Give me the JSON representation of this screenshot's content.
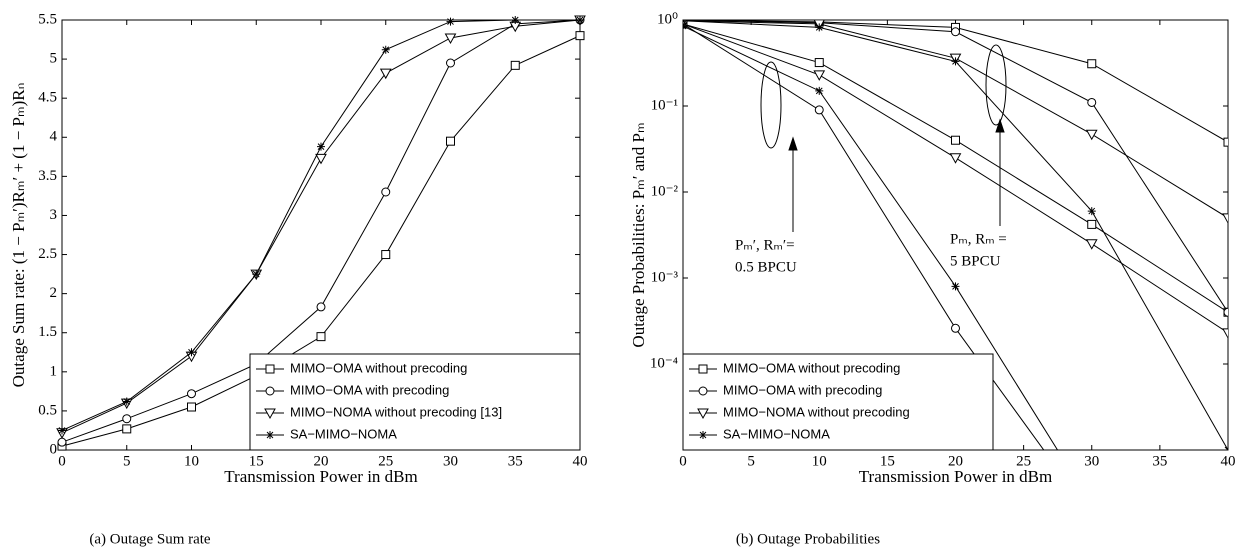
{
  "chart_data": [
    {
      "type": "line",
      "caption": "(a) Outage Sum rate",
      "xlabel": "Transmission Power in dBm",
      "ylabel": "Outage Sum rate: (1 − Pₘ′)Rₘ′ + (1 − Pₘ)Rₙ",
      "x": [
        0,
        5,
        10,
        15,
        20,
        25,
        30,
        35,
        40
      ],
      "xlim": [
        0,
        40
      ],
      "xticks": [
        0,
        5,
        10,
        15,
        20,
        25,
        30,
        35,
        40
      ],
      "ylim": [
        0,
        5.5
      ],
      "yticks": [
        0,
        0.5,
        1,
        1.5,
        2,
        2.5,
        3,
        3.5,
        4,
        4.5,
        5,
        5.5
      ],
      "legend": "lower right",
      "series": [
        {
          "name": "MIMO−OMA without precoding",
          "marker": "square",
          "color": "#000000",
          "values": [
            0.05,
            0.27,
            0.55,
            0.95,
            1.45,
            2.5,
            3.95,
            4.92,
            5.3
          ]
        },
        {
          "name": "MIMO−OMA with precoding",
          "marker": "circle",
          "color": "#000000",
          "values": [
            0.1,
            0.4,
            0.72,
            1.1,
            1.83,
            3.3,
            4.95,
            5.45,
            5.5
          ]
        },
        {
          "name": "MIMO−NOMA without precoding [13]",
          "marker": "triangle",
          "color": "#000000",
          "values": [
            0.22,
            0.6,
            1.2,
            2.25,
            3.73,
            4.82,
            5.27,
            5.42,
            5.5
          ]
        },
        {
          "name": "SA−MIMO−NOMA",
          "marker": "star",
          "color": "#000000",
          "values": [
            0.25,
            0.62,
            1.25,
            2.25,
            3.88,
            5.12,
            5.48,
            5.5,
            5.5
          ]
        }
      ]
    },
    {
      "type": "line",
      "caption": "(b) Outage Probabilities",
      "xlabel": "Transmission Power in dBm",
      "ylabel": "Outage Probabilities: Pₘ′ and Pₘ",
      "x": [
        0,
        10,
        20,
        30,
        40
      ],
      "xlim": [
        0,
        40
      ],
      "xticks": [
        0,
        5,
        10,
        15,
        20,
        25,
        30,
        35,
        40
      ],
      "log_y": true,
      "ylim": [
        1e-05,
        1
      ],
      "yticks": [
        {
          "value": 1,
          "label": "10⁰"
        },
        {
          "value": 0.1,
          "label": "10⁻¹"
        },
        {
          "value": 0.01,
          "label": "10⁻²"
        },
        {
          "value": 0.001,
          "label": "10⁻³"
        },
        {
          "value": 0.0001,
          "label": "10⁻⁴"
        }
      ],
      "legend": "lower left",
      "annotations": [
        [
          "Pₘ′, Rₘ′=",
          "0.5 BPCU"
        ],
        [
          "Pₘ, Rₘ =",
          "5 BPCU"
        ]
      ],
      "series": [
        {
          "name": "MIMO−OMA without precoding",
          "marker": "square",
          "color": "#000000",
          "pm_prime": [
            0.9,
            0.32,
            0.04,
            0.0042,
            0.0004
          ],
          "pm": [
            1,
            0.95,
            0.82,
            0.31,
            0.038
          ]
        },
        {
          "name": "MIMO−OMA with precoding",
          "marker": "circle",
          "color": "#000000",
          "pm_prime": [
            0.9,
            0.09,
            0.00026,
            1.7e-06,
            null
          ],
          "pm": [
            1,
            0.93,
            0.73,
            0.11,
            0.0004
          ]
        },
        {
          "name": "MIMO−NOMA without precoding",
          "marker": "triangle",
          "color": "#000000",
          "pm_prime": [
            0.9,
            0.23,
            0.025,
            0.0025,
            0.00023
          ],
          "pm": [
            0.98,
            0.9,
            0.36,
            0.047,
            0.005
          ]
        },
        {
          "name": "SA−MIMO−NOMA",
          "marker": "star",
          "color": "#000000",
          "pm_prime": [
            0.85,
            0.15,
            0.0008,
            2.3e-06,
            null
          ],
          "pm": [
            0.98,
            0.82,
            0.33,
            0.006,
            1e-05
          ]
        }
      ]
    }
  ]
}
